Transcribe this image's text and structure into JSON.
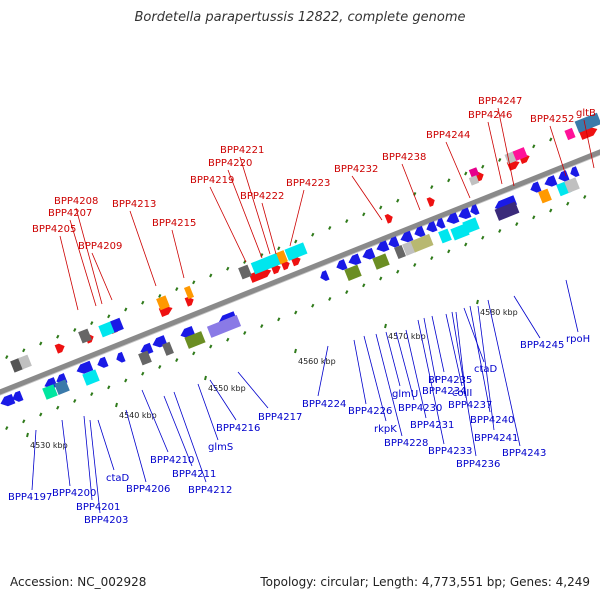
{
  "title": "Bordetella parapertussis 12822, complete genome",
  "footer": {
    "accession": "Accession: NC_002928",
    "summary": "Topology: circular; Length: 4,773,551 bp; Genes: 4,249"
  },
  "colors": {
    "backbone": "#8a8a8a",
    "forward_label": "#cc0000",
    "reverse_label": "#0000cc",
    "forward_gene": "#ee1111",
    "reverse_gene": "#1a1ae6",
    "marker": "#2f7a1a"
  },
  "scale_labels": [
    "4530 kbp",
    "4540 kbp",
    "4550 kbp",
    "4560 kbp",
    "4570 kbp",
    "4580 kbp"
  ],
  "forward_labels": [
    "BPP4205",
    "BPP4207",
    "BPP4208",
    "BPP4209",
    "BPP4213",
    "BPP4215",
    "BPP4219",
    "BPP4220",
    "BPP4221",
    "BPP4222",
    "BPP4223",
    "BPP4232",
    "BPP4238",
    "BPP4244",
    "BPP4246",
    "BPP4247",
    "BPP4252",
    "gltB"
  ],
  "reverse_labels": [
    "BPP4197",
    "BPP4200",
    "BPP4201",
    "BPP4203",
    "ctaD",
    "BPP4206",
    "BPP4210",
    "BPP4211",
    "BPP4212",
    "glmS",
    "BPP4216",
    "BPP4217",
    "BPP4224",
    "BPP4226",
    "rkpK",
    "BPP4228",
    "glmU",
    "BPP4230",
    "BPP4231",
    "BPP4233",
    "BPP4234",
    "BPP4235",
    "colII",
    "BPP4236",
    "BPP4237",
    "ctaD",
    "BPP4240",
    "BPP4241",
    "BPP4243",
    "BPP4245",
    "rpoH"
  ]
}
